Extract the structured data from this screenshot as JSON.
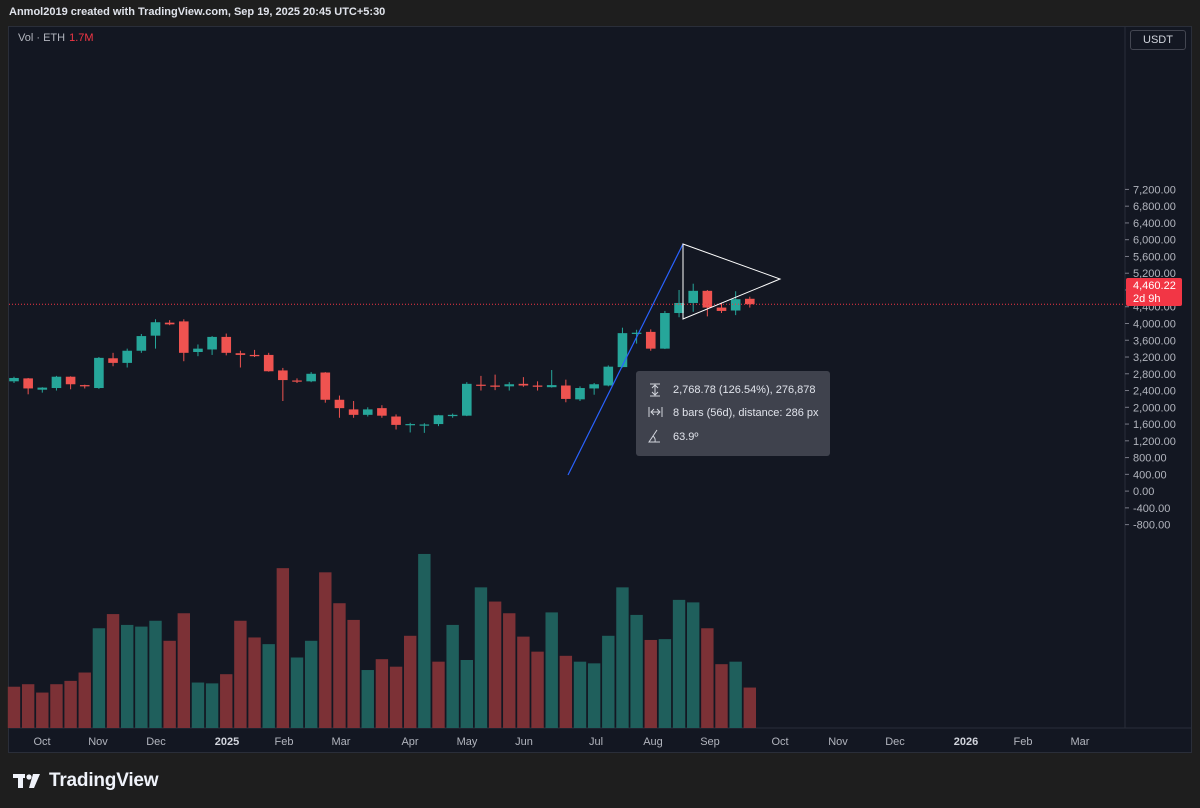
{
  "header": {
    "attribution": "Anmol2019 created with TradingView.com, Sep 19, 2025 20:45 UTC+5:30"
  },
  "legend": {
    "indicator": "Vol · ETH",
    "value": "1.7M"
  },
  "currency_button": "USDT",
  "price_label": {
    "price": "4,460.22",
    "countdown": "2d 9h"
  },
  "measure_tooltip": {
    "price_range": "2,768.78 (126.54%), 276,878",
    "bars_range": "8 bars (56d), distance: 286 px",
    "angle": "63.9º"
  },
  "brand": {
    "name": "TradingView"
  },
  "colors": {
    "up": "#26a69a",
    "down": "#ef5350",
    "vol_up": "#1f5f5c",
    "vol_down": "#7c3136",
    "background": "#131722",
    "trendline": "#2962ff",
    "triangle": "#ffffff",
    "price_line": "#f23645"
  },
  "chart_data": {
    "type": "candlestick",
    "symbol": "ETH/USDT",
    "interval": "1W",
    "y_axis_ticks": [
      "7,200.00",
      "6,800.00",
      "6,400.00",
      "6,000.00",
      "5,600.00",
      "5,200.00",
      "4,800.00",
      "4,400.00",
      "4,000.00",
      "3,600.00",
      "3,200.00",
      "2,800.00",
      "2,400.00",
      "2,000.00",
      "1,600.00",
      "1,200.00",
      "800.00",
      "400.00",
      "0.00",
      "-400.00",
      "-800.00"
    ],
    "y_axis_values": [
      7200,
      6800,
      6400,
      6000,
      5600,
      5200,
      4800,
      4400,
      4000,
      3600,
      3200,
      2800,
      2400,
      2000,
      1600,
      1200,
      800,
      400,
      0,
      -400,
      -800
    ],
    "x_axis_labels": [
      "Oct",
      "Nov",
      "Dec",
      "2025",
      "Feb",
      "Mar",
      "Apr",
      "May",
      "Jun",
      "Jul",
      "Aug",
      "Sep",
      "Oct",
      "Nov",
      "Dec",
      "2026",
      "Feb",
      "Mar"
    ],
    "current_price": 4460.22,
    "candles": [
      [
        2620,
        2730,
        2580,
        2700
      ],
      [
        2690,
        2700,
        2310,
        2450
      ],
      [
        2420,
        2480,
        2350,
        2470
      ],
      [
        2460,
        2750,
        2400,
        2730
      ],
      [
        2730,
        2740,
        2430,
        2550
      ],
      [
        2530,
        2540,
        2450,
        2500
      ],
      [
        2460,
        3200,
        2440,
        3180
      ],
      [
        3170,
        3300,
        2980,
        3060
      ],
      [
        3060,
        3400,
        2950,
        3350
      ],
      [
        3350,
        3750,
        3300,
        3700
      ],
      [
        3710,
        4100,
        3400,
        4030
      ],
      [
        4020,
        4080,
        3960,
        3980
      ],
      [
        4050,
        4100,
        3100,
        3300
      ],
      [
        3320,
        3500,
        3220,
        3400
      ],
      [
        3380,
        3700,
        3250,
        3680
      ],
      [
        3680,
        3760,
        3240,
        3300
      ],
      [
        3290,
        3350,
        2950,
        3250
      ],
      [
        3250,
        3370,
        3200,
        3220
      ],
      [
        3250,
        3300,
        2850,
        2860
      ],
      [
        2880,
        2940,
        2150,
        2650
      ],
      [
        2640,
        2690,
        2580,
        2620
      ],
      [
        2620,
        2840,
        2600,
        2800
      ],
      [
        2830,
        2840,
        2110,
        2180
      ],
      [
        2180,
        2280,
        1750,
        1980
      ],
      [
        1950,
        2150,
        1750,
        1820
      ],
      [
        1820,
        2000,
        1780,
        1950
      ],
      [
        1980,
        2050,
        1750,
        1800
      ],
      [
        1780,
        1830,
        1470,
        1580
      ],
      [
        1580,
        1630,
        1400,
        1600
      ],
      [
        1590,
        1620,
        1390,
        1590
      ],
      [
        1600,
        1820,
        1550,
        1810
      ],
      [
        1790,
        1850,
        1750,
        1820
      ],
      [
        1800,
        2600,
        1790,
        2560
      ],
      [
        2540,
        2750,
        2400,
        2520
      ],
      [
        2520,
        2780,
        2410,
        2490
      ],
      [
        2500,
        2600,
        2400,
        2550
      ],
      [
        2560,
        2720,
        2490,
        2520
      ],
      [
        2520,
        2620,
        2400,
        2490
      ],
      [
        2480,
        2890,
        2470,
        2530
      ],
      [
        2520,
        2660,
        2120,
        2200
      ],
      [
        2190,
        2500,
        2150,
        2460
      ],
      [
        2450,
        2580,
        2300,
        2550
      ],
      [
        2520,
        3000,
        2500,
        2970
      ],
      [
        2960,
        3900,
        2950,
        3770
      ],
      [
        3750,
        3850,
        3520,
        3780
      ],
      [
        3800,
        3860,
        3350,
        3400
      ],
      [
        3400,
        4300,
        3390,
        4250
      ],
      [
        4250,
        4800,
        4150,
        4490
      ],
      [
        4490,
        4950,
        4280,
        4780
      ],
      [
        4780,
        4800,
        4170,
        4380
      ],
      [
        4380,
        4500,
        4250,
        4300
      ],
      [
        4310,
        4770,
        4200,
        4580
      ],
      [
        4590,
        4640,
        4380,
        4460
      ]
    ],
    "volumes": [
      [
        -320,
        0
      ],
      [
        -290,
        0
      ],
      [
        -390,
        0
      ],
      [
        -290,
        0
      ],
      [
        -250,
        0
      ],
      [
        -150,
        0
      ],
      [
        380,
        1
      ],
      [
        550,
        0
      ],
      [
        420,
        1
      ],
      [
        400,
        1
      ],
      [
        470,
        1
      ],
      [
        230,
        0
      ],
      [
        560,
        0
      ],
      [
        -270,
        1
      ],
      [
        -280,
        1
      ],
      [
        -170,
        0
      ],
      [
        470,
        0
      ],
      [
        270,
        0
      ],
      [
        190,
        1
      ],
      [
        1100,
        0
      ],
      [
        30,
        1
      ],
      [
        230,
        1
      ],
      [
        1050,
        0
      ],
      [
        680,
        0
      ],
      [
        480,
        0
      ],
      [
        -120,
        1
      ],
      [
        10,
        0
      ],
      [
        -80,
        0
      ],
      [
        290,
        0
      ],
      [
        1270,
        1
      ],
      [
        -20,
        0
      ],
      [
        420,
        1
      ],
      [
        0,
        1
      ],
      [
        870,
        1
      ],
      [
        700,
        0
      ],
      [
        560,
        0
      ],
      [
        280,
        0
      ],
      [
        100,
        0
      ],
      [
        570,
        1
      ],
      [
        50,
        0
      ],
      [
        -20,
        1
      ],
      [
        -40,
        1
      ],
      [
        290,
        1
      ],
      [
        870,
        1
      ],
      [
        540,
        1
      ],
      [
        240,
        0
      ],
      [
        250,
        1
      ],
      [
        720,
        1
      ],
      [
        690,
        1
      ],
      [
        380,
        0
      ],
      [
        -50,
        0
      ],
      [
        -20,
        1
      ],
      [
        -330,
        0
      ]
    ]
  }
}
